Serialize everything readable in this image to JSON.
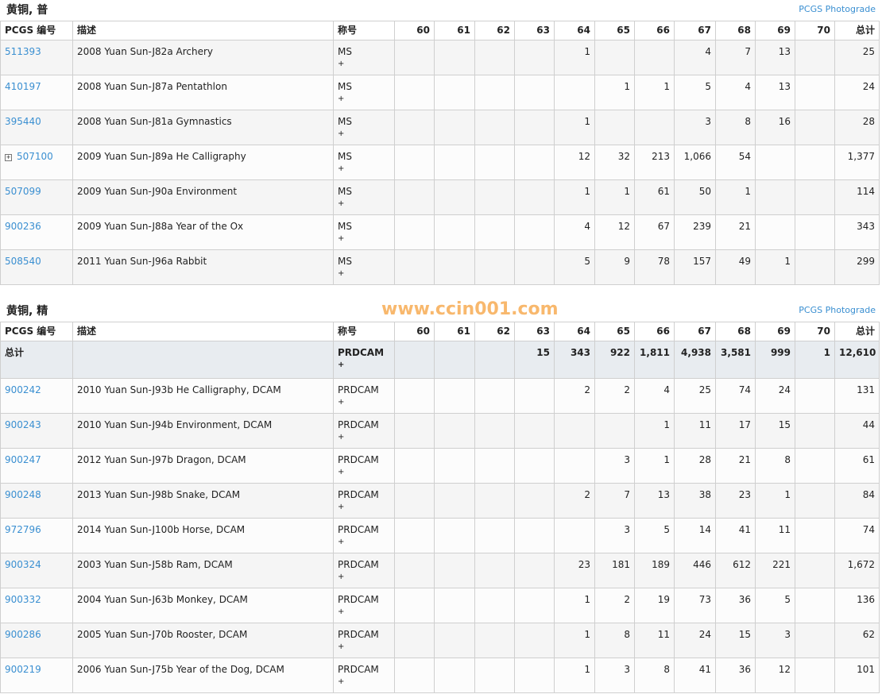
{
  "columns": [
    "PCGS 编号",
    "描述",
    "称号",
    "60",
    "61",
    "62",
    "63",
    "64",
    "65",
    "66",
    "67",
    "68",
    "69",
    "70",
    "总计"
  ],
  "sections": [
    {
      "title": "黄铜, 普",
      "link": "PCGS Photograde",
      "rows": [
        {
          "id": "511393",
          "desc": "2008 Yuan Sun-J82a Archery",
          "desig": "MS",
          "plus": "+",
          "vals": [
            "",
            "",
            "",
            "",
            "1",
            "",
            "",
            "4",
            "7",
            "13",
            ""
          ],
          "total": "25"
        },
        {
          "id": "410197",
          "desc": "2008 Yuan Sun-J87a Pentathlon",
          "desig": "MS",
          "plus": "+",
          "vals": [
            "",
            "",
            "",
            "",
            "",
            "1",
            "1",
            "5",
            "4",
            "13",
            ""
          ],
          "total": "24"
        },
        {
          "id": "395440",
          "desc": "2008 Yuan Sun-J81a Gymnastics",
          "desig": "MS",
          "plus": "+",
          "vals": [
            "",
            "",
            "",
            "",
            "1",
            "",
            "",
            "3",
            "8",
            "16",
            ""
          ],
          "total": "28"
        },
        {
          "id": "507100",
          "expand": "⊞",
          "desc": "2009 Yuan Sun-J89a He Calligraphy",
          "desig": "MS",
          "plus": "+",
          "vals": [
            "",
            "",
            "",
            "",
            "12",
            "32",
            "213",
            "1,066",
            "54",
            "",
            ""
          ],
          "total": "1,377"
        },
        {
          "id": "507099",
          "desc": "2009 Yuan Sun-J90a Environment",
          "desig": "MS",
          "plus": "+",
          "vals": [
            "",
            "",
            "",
            "",
            "1",
            "1",
            "61",
            "50",
            "1",
            "",
            ""
          ],
          "total": "114"
        },
        {
          "id": "900236",
          "desc": "2009 Yuan Sun-J88a Year of the Ox",
          "desig": "MS",
          "plus": "+",
          "vals": [
            "",
            "",
            "",
            "",
            "4",
            "12",
            "67",
            "239",
            "21",
            "",
            ""
          ],
          "total": "343"
        },
        {
          "id": "508540",
          "desc": "2011 Yuan Sun-J96a Rabbit",
          "desig": "MS",
          "plus": "+",
          "vals": [
            "",
            "",
            "",
            "",
            "5",
            "9",
            "78",
            "157",
            "49",
            "1",
            ""
          ],
          "total": "299"
        }
      ]
    },
    {
      "title": "黄铜, 精",
      "link": "PCGS Photograde",
      "totals": {
        "label": "总计",
        "desig": "PRDCAM",
        "plus": "+",
        "vals": [
          "",
          "",
          "",
          "15",
          "343",
          "922",
          "1,811",
          "4,938",
          "3,581",
          "999",
          "1"
        ],
        "total": "12,610"
      },
      "rows": [
        {
          "id": "900242",
          "desc": "2010 Yuan Sun-J93b He Calligraphy, DCAM",
          "desig": "PRDCAM",
          "plus": "+",
          "vals": [
            "",
            "",
            "",
            "",
            "2",
            "2",
            "4",
            "25",
            "74",
            "24",
            ""
          ],
          "total": "131"
        },
        {
          "id": "900243",
          "desc": "2010 Yuan Sun-J94b Environment, DCAM",
          "desig": "PRDCAM",
          "plus": "+",
          "vals": [
            "",
            "",
            "",
            "",
            "",
            "",
            "1",
            "11",
            "17",
            "15",
            ""
          ],
          "total": "44"
        },
        {
          "id": "900247",
          "desc": "2012 Yuan Sun-J97b Dragon, DCAM",
          "desig": "PRDCAM",
          "plus": "+",
          "vals": [
            "",
            "",
            "",
            "",
            "",
            "3",
            "1",
            "28",
            "21",
            "8",
            ""
          ],
          "total": "61"
        },
        {
          "id": "900248",
          "desc": "2013 Yuan Sun-J98b Snake, DCAM",
          "desig": "PRDCAM",
          "plus": "+",
          "vals": [
            "",
            "",
            "",
            "",
            "2",
            "7",
            "13",
            "38",
            "23",
            "1",
            ""
          ],
          "total": "84"
        },
        {
          "id": "972796",
          "desc": "2014 Yuan Sun-J100b Horse, DCAM",
          "desig": "PRDCAM",
          "plus": "+",
          "vals": [
            "",
            "",
            "",
            "",
            "",
            "3",
            "5",
            "14",
            "41",
            "11",
            ""
          ],
          "total": "74"
        },
        {
          "id": "900324",
          "desc": "2003 Yuan Sun-J58b Ram, DCAM",
          "desig": "PRDCAM",
          "plus": "+",
          "vals": [
            "",
            "",
            "",
            "",
            "23",
            "181",
            "189",
            "446",
            "612",
            "221",
            ""
          ],
          "total": "1,672"
        },
        {
          "id": "900332",
          "desc": "2004 Yuan Sun-J63b Monkey, DCAM",
          "desig": "PRDCAM",
          "plus": "+",
          "vals": [
            "",
            "",
            "",
            "",
            "1",
            "2",
            "19",
            "73",
            "36",
            "5",
            ""
          ],
          "total": "136"
        },
        {
          "id": "900286",
          "desc": "2005 Yuan Sun-J70b Rooster, DCAM",
          "desig": "PRDCAM",
          "plus": "+",
          "vals": [
            "",
            "",
            "",
            "",
            "1",
            "8",
            "11",
            "24",
            "15",
            "3",
            ""
          ],
          "total": "62"
        },
        {
          "id": "900219",
          "desc": "2006 Yuan Sun-J75b Year of the Dog, DCAM",
          "desig": "PRDCAM",
          "plus": "+",
          "vals": [
            "",
            "",
            "",
            "",
            "1",
            "3",
            "8",
            "41",
            "36",
            "12",
            ""
          ],
          "total": "101"
        }
      ]
    }
  ],
  "watermark": "www.ccin001.com"
}
